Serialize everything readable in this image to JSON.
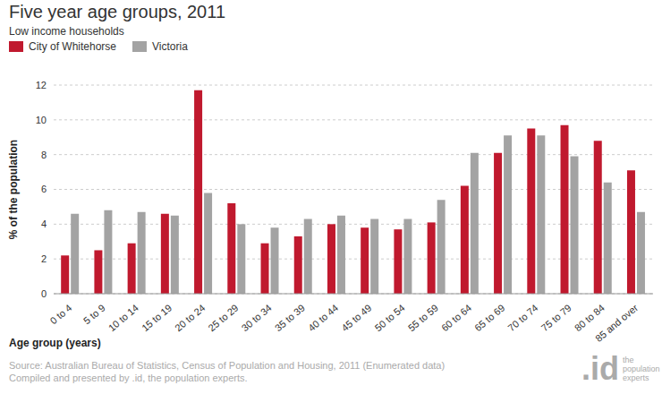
{
  "chart_data": {
    "type": "bar",
    "title": "Five year age groups, 2011",
    "subtitle": "Low income households",
    "x_label": "Age group (years)",
    "y_label": "% of the population",
    "categories": [
      "0 to 4",
      "5 to 9",
      "10 to 14",
      "15 to 19",
      "20 to 24",
      "25 to 29",
      "30 to 34",
      "35 to 39",
      "40 to 44",
      "45 to 49",
      "50 to 54",
      "55 to 59",
      "60 to 64",
      "65 to 69",
      "70 to 74",
      "75 to 79",
      "80 to 84",
      "85 and over"
    ],
    "series": [
      {
        "name": "City of Whitehorse",
        "color": "#c0192e",
        "values": [
          2.2,
          2.5,
          2.9,
          4.6,
          11.7,
          5.2,
          2.9,
          3.3,
          4.0,
          3.8,
          3.7,
          4.1,
          6.2,
          8.1,
          9.5,
          9.7,
          8.8,
          7.1
        ]
      },
      {
        "name": "Victoria",
        "color": "#a3a3a3",
        "values": [
          4.6,
          4.8,
          4.7,
          4.5,
          5.8,
          4.0,
          3.8,
          4.3,
          4.5,
          4.3,
          4.3,
          5.4,
          8.1,
          9.1,
          9.1,
          7.9,
          6.4,
          4.7
        ]
      }
    ],
    "ylim": [
      0,
      12
    ],
    "yticks": [
      0,
      2,
      4,
      6,
      8,
      10,
      12
    ],
    "grid": true,
    "legend": "top-left",
    "annotations": [
      "Source: Australian Bureau of Statistics, Census of Population and Housing, 2011 (Enumerated data)",
      "Compiled and presented by .id, the population experts."
    ],
    "logo": {
      "text": ".id",
      "tagline": "the population experts"
    }
  }
}
